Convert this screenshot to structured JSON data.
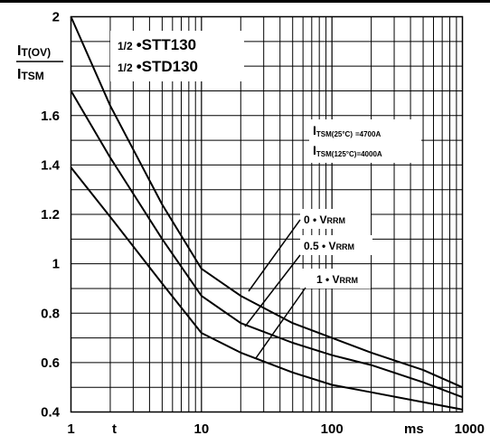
{
  "chart_data": {
    "type": "line",
    "x_scale": "log",
    "xlim": [
      1,
      1000
    ],
    "ylim": [
      0.4,
      2
    ],
    "grid": true,
    "y_ticks": [
      {
        "value": 2,
        "label": "2"
      },
      {
        "value": 1.6,
        "label": "1.6"
      },
      {
        "value": 1.4,
        "label": "1.4"
      },
      {
        "value": 1.2,
        "label": "1.2"
      },
      {
        "value": 1,
        "label": "1"
      },
      {
        "value": 0.8,
        "label": "0.8"
      },
      {
        "value": 0.6,
        "label": "0.6"
      },
      {
        "value": 0.4,
        "label": "0.4"
      }
    ],
    "x_ticks": [
      {
        "value": 1,
        "label": "1"
      },
      {
        "value": 10,
        "label": "10"
      },
      {
        "value": 100,
        "label": "100"
      },
      {
        "value": 1000,
        "label": "1000"
      }
    ],
    "x_axis_symbol": "t",
    "x_axis_unit": "ms",
    "ylabel": {
      "numerator": "I",
      "numerator_sub": "T(OV)",
      "denominator": "I",
      "denominator_sub": "TSM"
    },
    "title_lines": [
      {
        "prefix": "1/2",
        "text": "STT130"
      },
      {
        "prefix": "1/2",
        "text": "STD130"
      }
    ],
    "conditions": [
      {
        "main": "I",
        "sub": "TSM(25°C)",
        "value": "=4700A"
      },
      {
        "main": "I",
        "sub": "TSM(125°C)",
        "value": "=4000A"
      }
    ],
    "series": [
      {
        "label": "0 • V",
        "label_sub": "RRM",
        "x": [
          1,
          2,
          5,
          10,
          20,
          50,
          100,
          200,
          500,
          1000
        ],
        "y": [
          2.0,
          1.64,
          1.24,
          0.98,
          0.87,
          0.76,
          0.7,
          0.64,
          0.57,
          0.5
        ]
      },
      {
        "label": "0.5 • V",
        "label_sub": "RRM",
        "x": [
          1,
          2,
          5,
          10,
          20,
          50,
          100,
          200,
          500,
          1000
        ],
        "y": [
          1.7,
          1.43,
          1.1,
          0.87,
          0.76,
          0.68,
          0.63,
          0.59,
          0.52,
          0.46
        ]
      },
      {
        "label": "1 • V",
        "label_sub": "RRM",
        "x": [
          1,
          2,
          5,
          10,
          20,
          50,
          100,
          200,
          500,
          1000
        ],
        "y": [
          1.39,
          1.19,
          0.92,
          0.72,
          0.64,
          0.56,
          0.51,
          0.48,
          0.44,
          0.41
        ]
      }
    ]
  }
}
